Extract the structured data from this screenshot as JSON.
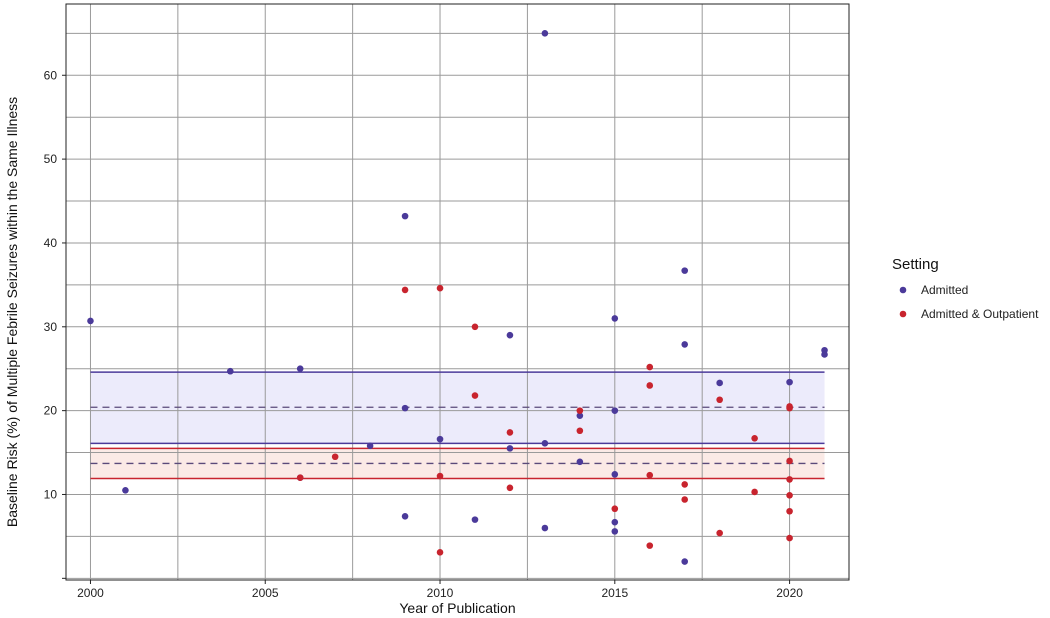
{
  "chart_data": {
    "type": "scatter",
    "xlabel": "Year of Publication",
    "ylabel": "Baseline Risk (%) of Multiple Febrile Seizures within the Same Illness",
    "xlim": [
      1999.3,
      2021.7
    ],
    "ylim": [
      -0.2,
      68.5
    ],
    "x_ticks": [
      2000,
      2005,
      2010,
      2015,
      2020
    ],
    "y_ticks": [
      10,
      20,
      30,
      40,
      50,
      60
    ],
    "grid": true,
    "legend": {
      "title": "Setting",
      "position": "right",
      "entries": [
        {
          "label": "Admitted",
          "color": "#4b3a9a"
        },
        {
          "label": "Admitted & Outpatient",
          "color": "#c8242e"
        }
      ]
    },
    "series": [
      {
        "name": "Admitted",
        "color": "#4b3a9a",
        "band": {
          "lower": 16.1,
          "mean": 20.4,
          "upper": 24.6,
          "x_range": [
            2000,
            2021
          ],
          "fill": "#ecebfb"
        },
        "points": [
          {
            "x": 2000,
            "y": 30.7
          },
          {
            "x": 2001,
            "y": 10.5
          },
          {
            "x": 2004,
            "y": 24.7
          },
          {
            "x": 2006,
            "y": 25.0
          },
          {
            "x": 2006,
            "y": 12.0
          },
          {
            "x": 2008,
            "y": 15.8
          },
          {
            "x": 2009,
            "y": 43.2
          },
          {
            "x": 2009,
            "y": 20.3
          },
          {
            "x": 2009,
            "y": 7.4
          },
          {
            "x": 2010,
            "y": 16.6
          },
          {
            "x": 2011,
            "y": 7.0
          },
          {
            "x": 2012,
            "y": 29.0
          },
          {
            "x": 2012,
            "y": 15.5
          },
          {
            "x": 2013,
            "y": 65.0
          },
          {
            "x": 2013,
            "y": 16.1
          },
          {
            "x": 2013,
            "y": 6.0
          },
          {
            "x": 2014,
            "y": 19.4
          },
          {
            "x": 2014,
            "y": 13.9
          },
          {
            "x": 2015,
            "y": 31.0
          },
          {
            "x": 2015,
            "y": 20.0
          },
          {
            "x": 2015,
            "y": 12.4
          },
          {
            "x": 2015,
            "y": 6.7
          },
          {
            "x": 2015,
            "y": 5.6
          },
          {
            "x": 2017,
            "y": 36.7
          },
          {
            "x": 2017,
            "y": 27.9
          },
          {
            "x": 2017,
            "y": 2.0
          },
          {
            "x": 2018,
            "y": 23.3
          },
          {
            "x": 2020,
            "y": 23.4
          },
          {
            "x": 2021,
            "y": 27.2
          },
          {
            "x": 2021,
            "y": 26.7
          }
        ]
      },
      {
        "name": "Admitted & Outpatient",
        "color": "#c8242e",
        "band": {
          "lower": 11.9,
          "mean": 13.7,
          "upper": 15.5,
          "x_range": [
            2000,
            2021
          ],
          "fill": "#fbeae6"
        },
        "points": [
          {
            "x": 2006,
            "y": 12.0
          },
          {
            "x": 2007,
            "y": 14.5
          },
          {
            "x": 2009,
            "y": 34.4
          },
          {
            "x": 2010,
            "y": 34.6
          },
          {
            "x": 2010,
            "y": 12.2
          },
          {
            "x": 2010,
            "y": 3.1
          },
          {
            "x": 2011,
            "y": 30.0
          },
          {
            "x": 2011,
            "y": 21.8
          },
          {
            "x": 2012,
            "y": 17.4
          },
          {
            "x": 2012,
            "y": 10.8
          },
          {
            "x": 2014,
            "y": 20.0
          },
          {
            "x": 2014,
            "y": 17.6
          },
          {
            "x": 2015,
            "y": 8.3
          },
          {
            "x": 2016,
            "y": 25.2
          },
          {
            "x": 2016,
            "y": 23.0
          },
          {
            "x": 2016,
            "y": 12.3
          },
          {
            "x": 2016,
            "y": 3.9
          },
          {
            "x": 2017,
            "y": 11.2
          },
          {
            "x": 2017,
            "y": 9.4
          },
          {
            "x": 2018,
            "y": 21.3
          },
          {
            "x": 2018,
            "y": 5.4
          },
          {
            "x": 2019,
            "y": 16.7
          },
          {
            "x": 2019,
            "y": 10.3
          },
          {
            "x": 2020,
            "y": 20.5
          },
          {
            "x": 2020,
            "y": 20.3
          },
          {
            "x": 2020,
            "y": 14.0
          },
          {
            "x": 2020,
            "y": 11.8
          },
          {
            "x": 2020,
            "y": 9.9
          },
          {
            "x": 2020,
            "y": 8.0
          },
          {
            "x": 2020,
            "y": 4.8
          }
        ]
      }
    ]
  }
}
